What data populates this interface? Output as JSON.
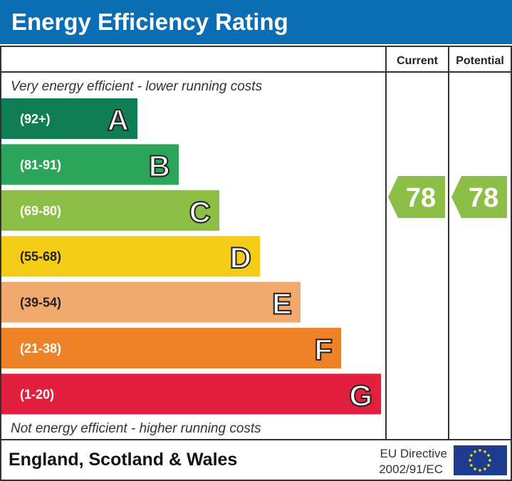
{
  "title": "Energy Efficiency Rating",
  "chart_data": {
    "type": "bar",
    "columns": [
      "Current",
      "Potential"
    ],
    "top_note": "Very energy efficient - lower running costs",
    "bottom_note": "Not energy efficient - higher running costs",
    "bands": [
      {
        "letter": "A",
        "range": "(92+)",
        "color": "#117d55"
      },
      {
        "letter": "B",
        "range": "(81-91)",
        "color": "#2aa55a"
      },
      {
        "letter": "C",
        "range": "(69-80)",
        "color": "#8dbe45"
      },
      {
        "letter": "D",
        "range": "(55-68)",
        "color": "#f5cd18"
      },
      {
        "letter": "E",
        "range": "(39-54)",
        "color": "#f2a96e"
      },
      {
        "letter": "F",
        "range": "(21-38)",
        "color": "#ee8228"
      },
      {
        "letter": "G",
        "range": "(1-20)",
        "color": "#e21f3c"
      }
    ],
    "current": {
      "value": "78",
      "band": "C",
      "color": "#8dbe45"
    },
    "potential": {
      "value": "78",
      "band": "C",
      "color": "#8dbe45"
    }
  },
  "footer": {
    "region": "England, Scotland & Wales",
    "directive_line1": "EU Directive",
    "directive_line2": "2002/91/EC",
    "flag_color": "#1d3c8f",
    "star_color": "#ffdd00"
  }
}
